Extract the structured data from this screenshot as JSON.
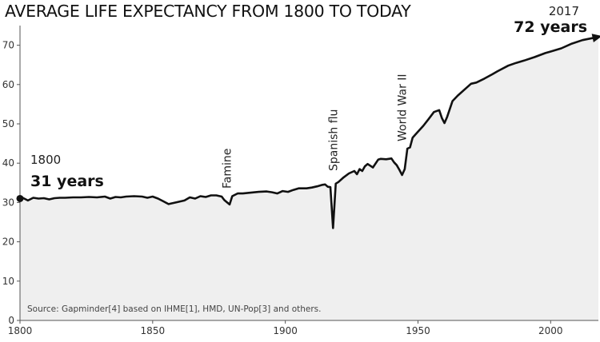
{
  "title": "AVERAGE LIFE EXPECTANCY FROM 1800 TO TODAY",
  "source": "Source: Gapminder[4] based on IHME[1], HMD, UN-Pop[3] and others.",
  "start_label": {
    "year": "1800",
    "value": "31 years"
  },
  "end_label": {
    "year": "2017",
    "value": "72 years"
  },
  "chart_data": {
    "type": "area",
    "xlim": [
      1800,
      2018
    ],
    "ylim": [
      0,
      75
    ],
    "x_ticks": [
      1800,
      1850,
      1900,
      1950,
      2000
    ],
    "y_ticks": [
      0,
      10,
      20,
      30,
      40,
      50,
      60,
      70
    ],
    "grid": false,
    "fill_color": "#efefef",
    "line_color": "#111111",
    "annotations": [
      {
        "text": "Famine",
        "x": 1878,
        "y": 31.2
      },
      {
        "text": "Spanish flu",
        "x": 1918,
        "y": 23.5
      },
      {
        "text": "World War II",
        "x": 1944,
        "y": 37.0
      }
    ],
    "x": [
      1800,
      1801,
      1803,
      1805,
      1807,
      1809,
      1811,
      1813,
      1815,
      1817,
      1820,
      1823,
      1826,
      1829,
      1832,
      1834,
      1836,
      1838,
      1840,
      1843,
      1846,
      1848,
      1850,
      1852,
      1854,
      1856,
      1858,
      1860,
      1862,
      1864,
      1866,
      1868,
      1870,
      1872,
      1874,
      1876,
      1877,
      1879,
      1880,
      1882,
      1884,
      1887,
      1890,
      1893,
      1895,
      1897,
      1899,
      1901,
      1903,
      1905,
      1908,
      1910,
      1912,
      1914,
      1915,
      1916,
      1917,
      1918,
      1919,
      1920,
      1922,
      1924,
      1926,
      1927,
      1928,
      1929,
      1930,
      1931,
      1933,
      1935,
      1936,
      1938,
      1940,
      1941,
      1942,
      1943,
      1944,
      1945,
      1946,
      1947,
      1948,
      1950,
      1952,
      1954,
      1956,
      1958,
      1959,
      1960,
      1961,
      1963,
      1965,
      1968,
      1970,
      1972,
      1975,
      1978,
      1980,
      1984,
      1987,
      1990,
      1994,
      1998,
      2000,
      2004,
      2008,
      2012,
      2017
    ],
    "values": [
      31.0,
      31.2,
      30.5,
      31.2,
      31.0,
      31.1,
      30.8,
      31.1,
      31.2,
      31.2,
      31.3,
      31.3,
      31.4,
      31.3,
      31.5,
      31.0,
      31.4,
      31.3,
      31.5,
      31.6,
      31.5,
      31.2,
      31.5,
      31.0,
      30.3,
      29.6,
      29.9,
      30.2,
      30.5,
      31.3,
      31.0,
      31.6,
      31.4,
      31.8,
      31.8,
      31.5,
      30.6,
      29.5,
      31.6,
      32.3,
      32.3,
      32.5,
      32.7,
      32.8,
      32.6,
      32.3,
      32.9,
      32.7,
      33.2,
      33.6,
      33.6,
      33.8,
      34.1,
      34.5,
      34.6,
      34.0,
      33.9,
      23.5,
      34.8,
      35.2,
      36.4,
      37.4,
      38.0,
      37.2,
      38.5,
      38.0,
      39.2,
      39.8,
      38.9,
      40.9,
      41.1,
      41.0,
      41.2,
      40.2,
      39.5,
      38.3,
      37.0,
      38.5,
      43.7,
      44.0,
      46.5,
      48.0,
      49.5,
      51.2,
      53.0,
      53.5,
      51.5,
      50.2,
      51.8,
      55.8,
      57.2,
      59.0,
      60.2,
      60.5,
      61.5,
      62.6,
      63.4,
      64.8,
      65.5,
      66.1,
      67.0,
      68.0,
      68.4,
      69.2,
      70.4,
      71.3,
      72.0
    ]
  }
}
